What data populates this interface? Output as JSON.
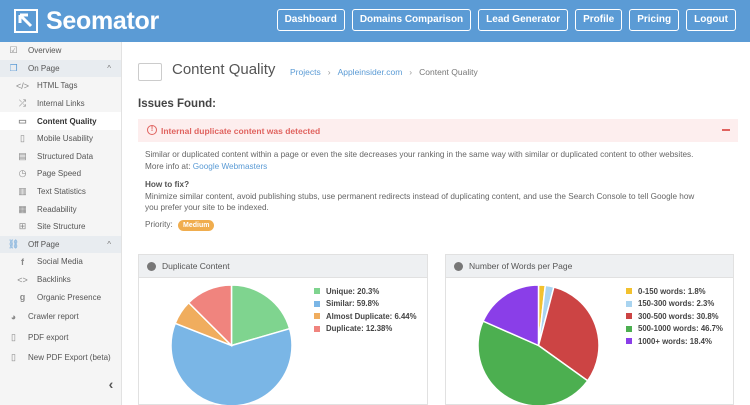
{
  "header": {
    "brand": "Seomator",
    "nav": [
      "Dashboard",
      "Domains Comparison",
      "Lead Generator",
      "Profile",
      "Pricing",
      "Logout"
    ]
  },
  "sidebar": {
    "items": [
      {
        "label": "Overview",
        "icon": "checklist-icon",
        "level": "top"
      },
      {
        "label": "On Page",
        "icon": "copy-icon",
        "level": "section",
        "chevron": "^"
      },
      {
        "label": "HTML Tags",
        "icon": "code-icon",
        "level": "sub"
      },
      {
        "label": "Internal Links",
        "icon": "shuffle-icon",
        "level": "sub"
      },
      {
        "label": "Content Quality",
        "icon": "monitor-icon",
        "level": "sub",
        "active": true
      },
      {
        "label": "Mobile Usability",
        "icon": "tablet-icon",
        "level": "sub"
      },
      {
        "label": "Structured Data",
        "icon": "file-icon",
        "level": "sub"
      },
      {
        "label": "Page Speed",
        "icon": "stopwatch-icon",
        "level": "sub"
      },
      {
        "label": "Text Statistics",
        "icon": "document-icon",
        "level": "sub"
      },
      {
        "label": "Readability",
        "icon": "book-icon",
        "level": "sub"
      },
      {
        "label": "Site Structure",
        "icon": "sitemap-icon",
        "level": "sub"
      },
      {
        "label": "Off Page",
        "icon": "link-icon",
        "level": "section",
        "chevron": "^"
      },
      {
        "label": "Social Media",
        "icon": "facebook-icon",
        "level": "sub"
      },
      {
        "label": "Backlinks",
        "icon": "backlinks-icon",
        "level": "sub"
      },
      {
        "label": "Organic Presence",
        "icon": "google-icon",
        "level": "sub"
      },
      {
        "label": "Crawler report",
        "icon": "pie-icon",
        "level": "top"
      },
      {
        "label": "PDF export",
        "icon": "pdf-icon",
        "level": "top"
      },
      {
        "label": "New PDF Export (beta)",
        "icon": "pdf-icon",
        "level": "top"
      }
    ],
    "collapse": "‹"
  },
  "main": {
    "title": "Content Quality",
    "breadcrumb": [
      "Projects",
      "Appleinsider.com",
      "Content Quality"
    ],
    "issues_title": "Issues Found:",
    "alert": "Internal duplicate content was detected",
    "alert_icon": "!",
    "description": "Similar or duplicated content within a page or even the site decreases your ranking in the same way with similar or duplicated content to other websites.",
    "more_info_prefix": "More info at:",
    "more_info_link": "Google Webmasters",
    "how_to_fix_title": "How to fix?",
    "how_to_fix_line1": "Minimize similar content, avoid publishing stubs, use permanent redirects instead of duplicating content, and use the Search Console to tell Google how",
    "how_to_fix_line2": "you prefer your site to be indexed.",
    "priority_label": "Priority:",
    "priority_value": "Medium"
  },
  "chart_data": [
    {
      "type": "pie",
      "title": "Duplicate Content",
      "labels": [
        "Unique",
        "Similar",
        "Almost Duplicate",
        "Duplicate"
      ],
      "legend_text": [
        "Unique: 20.3%",
        "Similar: 59.8%",
        "Almost Duplicate: 6.44%",
        "Duplicate: 12.38%"
      ],
      "values": [
        20.3,
        59.8,
        6.44,
        12.38
      ],
      "colors": [
        "#7fd48f",
        "#7ab6e6",
        "#f0ad5e",
        "#f0847e"
      ]
    },
    {
      "type": "pie",
      "title": "Number of Words per Page",
      "labels": [
        "0-150 words",
        "150-300 words",
        "300-500 words",
        "500-1000 words",
        "1000+ words"
      ],
      "legend_text": [
        "0-150 words: 1.8%",
        "150-300 words: 2.3%",
        "300-500 words: 30.8%",
        "500-1000 words: 46.7%",
        "1000+ words: 18.4%"
      ],
      "values": [
        1.8,
        2.3,
        30.8,
        46.7,
        18.4
      ],
      "colors": [
        "#f2c12e",
        "#a9d4f0",
        "#cc4444",
        "#4caf50",
        "#8a3ee8"
      ]
    }
  ]
}
